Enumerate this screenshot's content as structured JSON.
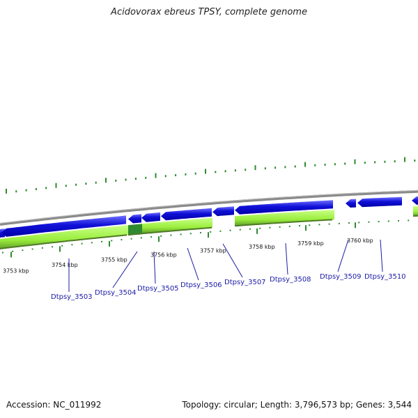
{
  "title": "Acidovorax ebreus TPSY, complete genome",
  "footer": {
    "accession": "Accession: NC_011992",
    "summary": "Topology: circular; Length: 3,796,573 bp; Genes: 3,544"
  },
  "colors": {
    "backbone": "#8a8a8a",
    "cds_blue": "#1010d8",
    "cds_blue_light": "#6f6fff",
    "cds_green": "#9aee3c",
    "cds_green_dark": "#2f8a2f",
    "tick_green": "#2f8a2f",
    "leader": "#1a1aa6"
  },
  "scale": {
    "unit": "kbp",
    "major_ticks": [
      {
        "kbp": 3753,
        "label": "3753 kbp"
      },
      {
        "kbp": 3754,
        "label": "3754 kbp"
      },
      {
        "kbp": 3755,
        "label": "3755 kbp"
      },
      {
        "kbp": 3756,
        "label": "3756 kbp"
      },
      {
        "kbp": 3757,
        "label": "3757 kbp"
      },
      {
        "kbp": 3758,
        "label": "3758 kbp"
      },
      {
        "kbp": 3759,
        "label": "3759 kbp"
      },
      {
        "kbp": 3760,
        "label": "3760 kbp"
      }
    ]
  },
  "genes": [
    {
      "name": "Dtpsy_3503"
    },
    {
      "name": "Dtpsy_3504"
    },
    {
      "name": "Dtpsy_3505"
    },
    {
      "name": "Dtpsy_3506"
    },
    {
      "name": "Dtpsy_3507"
    },
    {
      "name": "Dtpsy_3508"
    },
    {
      "name": "Dtpsy_3509"
    },
    {
      "name": "Dtpsy_3510"
    }
  ]
}
